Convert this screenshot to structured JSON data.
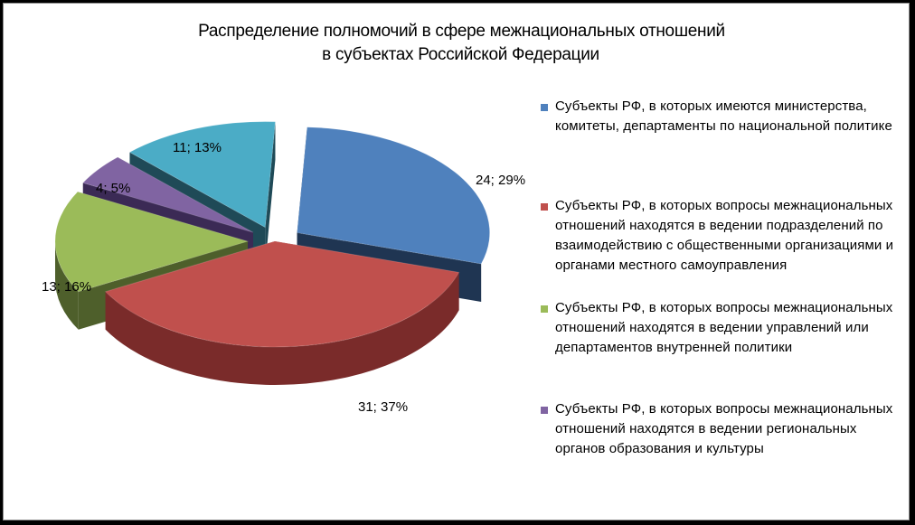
{
  "title": {
    "line1": "Распределение полномочий в сфере межнациональных отношений",
    "line2": "в субъектах Российской Федерации"
  },
  "chart_data": {
    "type": "pie",
    "title": "Распределение полномочий в сфере межнациональных отношений в субъектах Российской Федерации",
    "legend_position": "right",
    "style": "3d-exploded",
    "series": [
      {
        "name": "Субъекты РФ, в которых имеются министерства, комитеты, департаменты по национальной политике",
        "value": 24,
        "percent": 29,
        "label": "24; 29%",
        "color": "#4F81BD",
        "side_color": "#1F3552"
      },
      {
        "name": "Субъекты РФ, в которых вопросы межнациональных отношений находятся в ведении подразделений по взаимодействию с общественными организациями и органами местного самоуправления",
        "value": 31,
        "percent": 37,
        "label": "31; 37%",
        "color": "#C0504D",
        "side_color": "#7A2B2A"
      },
      {
        "name": "Субъекты РФ, в которых вопросы межнациональных отношений находятся в ведении управлений или департаментов внутренней политики",
        "value": 13,
        "percent": 16,
        "label": "13; 16%",
        "color": "#9BBB59",
        "side_color": "#4E5F2B"
      },
      {
        "name": "Субъекты РФ, в которых вопросы межнациональных отношений находятся в ведении региональных органов образования и культуры",
        "value": 4,
        "percent": 5,
        "label": "4; 5%",
        "color": "#8064A2",
        "side_color": "#3B2A55"
      },
      {
        "name": "",
        "value": 11,
        "percent": 13,
        "label": "11; 13%",
        "color": "#4BACC6",
        "side_color": "#1F4A57"
      }
    ]
  },
  "legend": [
    {
      "text": "Субъекты РФ, в которых имеются министерства, комитеты, департаменты по национальной политике",
      "color": "#4F81BD"
    },
    {
      "text": "Субъекты РФ, в которых вопросы межнациональных отношений находятся в ведении подразделений по взаимодействию с общественными организациями и органами местного самоуправления",
      "color": "#C0504D"
    },
    {
      "text": "Субъекты РФ, в которых вопросы межнациональных отношений находятся в ведении управлений или департаментов внутренней политики",
      "color": "#9BBB59"
    },
    {
      "text": "Субъекты РФ, в которых вопросы межнациональных отношений находятся в ведении региональных органов образования и культуры",
      "color": "#8064A2"
    }
  ]
}
